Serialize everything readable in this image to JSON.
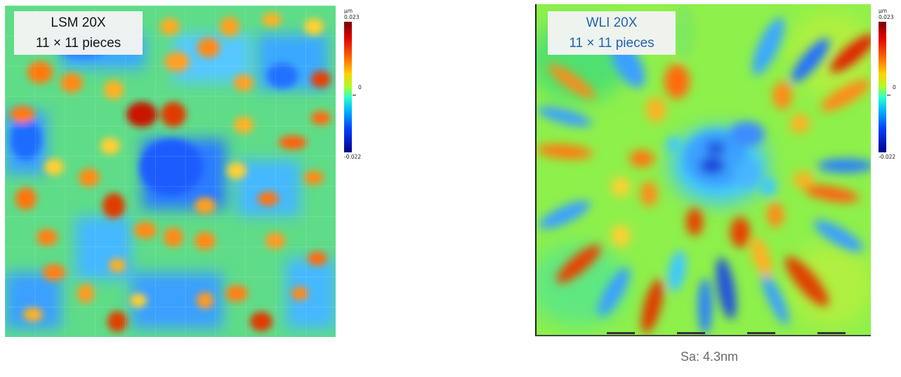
{
  "panels": [
    {
      "title": "LSM 20X",
      "subtitle": "11 × 11 pieces"
    },
    {
      "title": "WLI 20X",
      "subtitle": "11 × 11 pieces"
    }
  ],
  "scale_bars": [
    {
      "unit": "µm",
      "max": "0.023",
      "zero": "0",
      "min": "-0.022"
    },
    {
      "unit": "µm",
      "max": "0.023",
      "zero": "0",
      "min": "-0.022"
    }
  ],
  "sa_text": "Sa: 4.3nm",
  "colors": {
    "background": "#ffffff",
    "label_dark": "#111111",
    "label_blue": "#1f5fb3",
    "sa_gray": "#6a6a6a"
  }
}
